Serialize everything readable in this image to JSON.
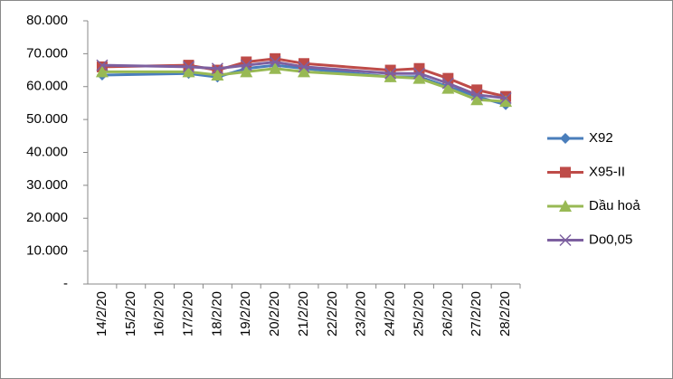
{
  "chart_data": {
    "type": "line",
    "categories": [
      "14/2/20",
      "15/2/20",
      "16/2/20",
      "17/2/20",
      "18/2/20",
      "19/2/20",
      "20/2/20",
      "21/2/20",
      "22/2/20",
      "23/2/20",
      "24/2/20",
      "25/2/20",
      "26/2/20",
      "27/2/20",
      "28/2/20"
    ],
    "x": [
      "14/2/20",
      "17/2/20",
      "18/2/20",
      "19/2/20",
      "20/2/20",
      "21/2/20",
      "24/2/20",
      "25/2/20",
      "26/2/20",
      "27/2/20",
      "28/2/20"
    ],
    "series": [
      {
        "name": "X92",
        "color": "#4a7ebb",
        "marker": "diamond",
        "values": [
          63500,
          64000,
          62900,
          65500,
          66500,
          65500,
          63000,
          63000,
          60000,
          57000,
          54500
        ]
      },
      {
        "name": "X95-II",
        "color": "#be4b48",
        "marker": "square",
        "values": [
          66000,
          66500,
          65000,
          67500,
          68500,
          67000,
          65000,
          65500,
          62500,
          59000,
          57000
        ]
      },
      {
        "name": "Dầu hoả",
        "color": "#98b954",
        "marker": "triangle",
        "values": [
          64500,
          64500,
          63500,
          64500,
          65500,
          64500,
          63000,
          62500,
          59500,
          56000,
          55500
        ]
      },
      {
        "name": "Do0,05",
        "color": "#7d60a0",
        "marker": "cross",
        "values": [
          66500,
          66000,
          65500,
          66500,
          67500,
          66000,
          64000,
          64000,
          61000,
          57500,
          56500
        ]
      }
    ],
    "ylim": [
      0,
      80000
    ],
    "yticks": [
      {
        "value": 0,
        "label": "-"
      },
      {
        "value": 10000,
        "label": "10.000"
      },
      {
        "value": 20000,
        "label": "20.000"
      },
      {
        "value": 30000,
        "label": "30.000"
      },
      {
        "value": 40000,
        "label": "40.000"
      },
      {
        "value": 50000,
        "label": "50.000"
      },
      {
        "value": 60000,
        "label": "60.000"
      },
      {
        "value": 70000,
        "label": "70.000"
      },
      {
        "value": 80000,
        "label": "80.000"
      }
    ],
    "grid": false,
    "legend": "right"
  }
}
